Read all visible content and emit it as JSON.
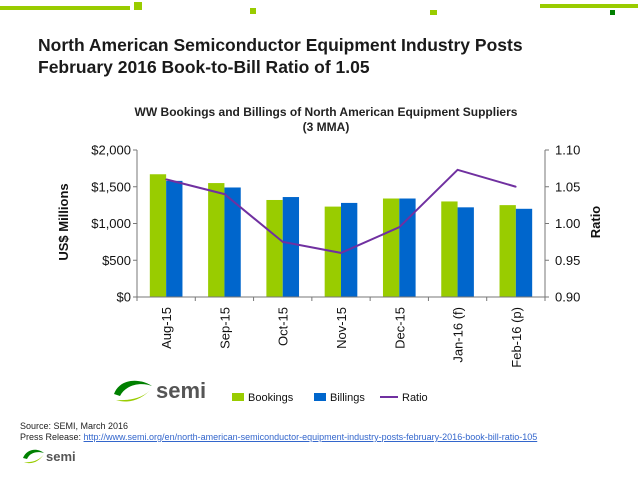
{
  "slide": {
    "title": "North American Semiconductor Equipment Industry Posts\nFebruary 2016 Book-to-Bill Ratio of 1.05",
    "source": "Source: SEMI, March 2016",
    "press_label": "Press Release: ",
    "press_url": "http://www.semi.org/en/north-american-semiconductor-equipment-industry-posts-february-2016-book-bill-ratio-105",
    "logo_text": "semi",
    "accent_colors": [
      "#99cc00",
      "#008000",
      "#555555"
    ]
  },
  "chart_data": {
    "type": "bar",
    "title": "WW Bookings and Billings of North American Equipment Suppliers",
    "subtitle": "(3 MMA)",
    "ylabel": "US$ Millions",
    "y2label": "Ratio",
    "categories": [
      "Aug-15",
      "Sep-15",
      "Oct-15",
      "Nov-15",
      "Dec-15",
      "Jan-16 (f)",
      "Feb-16 (p)"
    ],
    "ylim": [
      0,
      2000
    ],
    "yticks": [
      0,
      500,
      1000,
      1500,
      2000
    ],
    "ytick_labels": [
      "$0",
      "$500",
      "$1,000",
      "$1,500",
      "$2,000"
    ],
    "y2lim": [
      0.9,
      1.1
    ],
    "y2ticks": [
      0.9,
      0.95,
      1.0,
      1.05,
      1.1
    ],
    "y2tick_labels": [
      "0.90",
      "0.95",
      "1.00",
      "1.05",
      "1.10"
    ],
    "series": [
      {
        "name": "Bookings",
        "type": "bar",
        "color": "#99cc00",
        "values": [
          1670,
          1550,
          1320,
          1230,
          1340,
          1300,
          1250
        ]
      },
      {
        "name": "Billings",
        "type": "bar",
        "color": "#0066cc",
        "values": [
          1580,
          1490,
          1360,
          1280,
          1340,
          1220,
          1200
        ]
      },
      {
        "name": "Ratio",
        "type": "line",
        "axis": "right",
        "color": "#7030a0",
        "values": [
          1.06,
          1.04,
          0.975,
          0.96,
          0.995,
          1.073,
          1.05
        ]
      }
    ],
    "legend": "bottom",
    "grid": false
  }
}
